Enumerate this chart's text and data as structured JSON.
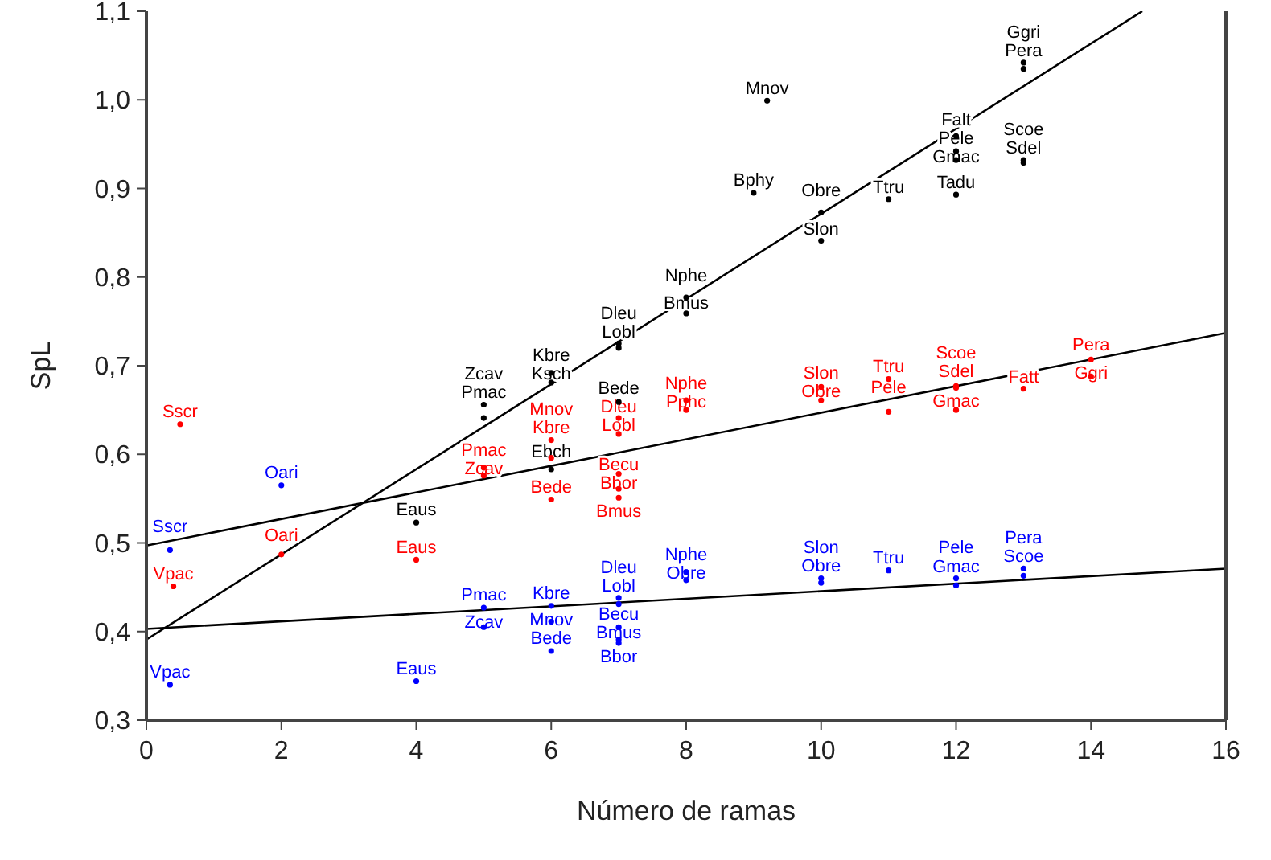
{
  "chart_data": {
    "type": "scatter",
    "xlabel": "Número de ramas",
    "ylabel": "SpL",
    "xlim": [
      0,
      16
    ],
    "xticks": [
      0,
      2,
      4,
      6,
      8,
      10,
      12,
      14,
      16
    ],
    "ylim": [
      0.3,
      1.1
    ],
    "yticks": [
      {
        "value": 0.3,
        "label": "0,3"
      },
      {
        "value": 0.4,
        "label": "0,4"
      },
      {
        "value": 0.5,
        "label": "0,5"
      },
      {
        "value": 0.6,
        "label": "0,6"
      },
      {
        "value": 0.7,
        "label": "0,7"
      },
      {
        "value": 0.8,
        "label": "0,8"
      },
      {
        "value": 0.9,
        "label": "0,9"
      },
      {
        "value": 1.0,
        "label": "1,0"
      },
      {
        "value": 1.1,
        "label": "1,1"
      }
    ],
    "grid": false,
    "series": [
      {
        "marker": "circle",
        "color": "#000000",
        "x": [
          9.2,
          9.0,
          10.0,
          10.0,
          11.0,
          12.0,
          13.0,
          13.0,
          12.0,
          12.0,
          12.0,
          13.0,
          13.0,
          8.0,
          8.0,
          7.0,
          7.0,
          6.0,
          6.0,
          7.0,
          5.0,
          5.0,
          6.0,
          4.0
        ],
        "values": [
          0.999,
          0.895,
          0.873,
          0.841,
          0.888,
          0.893,
          1.042,
          1.035,
          0.959,
          0.942,
          0.932,
          0.932,
          0.929,
          0.777,
          0.759,
          0.725,
          0.72,
          0.692,
          0.681,
          0.659,
          0.656,
          0.641,
          0.583,
          0.523
        ],
        "value_labels": [
          "Mnov",
          "Bphy",
          "Obre",
          "Slon",
          "Ttru",
          "Tadu",
          "Ggri",
          "Pera",
          "Falt",
          "Pele",
          "Gmac",
          "Scoe",
          "Sdel",
          "Nphe",
          "Bmus",
          "Dleu",
          "Lobl",
          "Kbre",
          "Ksch",
          "Bede",
          "Zcav",
          "Pmac",
          "Ebch",
          "Eaus"
        ]
      },
      {
        "marker": "circle",
        "color": "#ff0000",
        "x": [
          0.5,
          2.0,
          0.4,
          4.0,
          5.0,
          5.0,
          6.0,
          6.0,
          6.0,
          7.0,
          7.0,
          7.0,
          7.0,
          7.0,
          8.0,
          8.0,
          10.0,
          10.0,
          11.0,
          11.0,
          12.0,
          12.0,
          12.0,
          13.0,
          14.0,
          14.0
        ],
        "values": [
          0.634,
          0.487,
          0.451,
          0.481,
          0.585,
          0.576,
          0.616,
          0.596,
          0.549,
          0.641,
          0.623,
          0.578,
          0.561,
          0.551,
          0.661,
          0.65,
          0.676,
          0.661,
          0.685,
          0.648,
          0.677,
          0.675,
          0.65,
          0.674,
          0.707,
          0.688
        ],
        "value_labels": [
          "Sscr",
          "Oari",
          "Vpac",
          "Eaus",
          "Pmac",
          "Zcav",
          "Mnov",
          "Kbre",
          "Bede",
          "Dleu",
          "Lobl",
          "Becu",
          "Bbor",
          "Bmus",
          "Nphe",
          "Pphc",
          "Slon",
          "Obre",
          "Ttru",
          "Pele",
          "Scoe",
          "Sdel",
          "Gmac",
          "Fatt",
          "Pera",
          "Ggri"
        ]
      },
      {
        "marker": "circle",
        "color": "#0000ff",
        "x": [
          2.0,
          0.35,
          0.35,
          4.0,
          5.0,
          5.0,
          6.0,
          6.0,
          6.0,
          7.0,
          7.0,
          7.0,
          7.0,
          7.0,
          8.0,
          8.0,
          10.0,
          10.0,
          11.0,
          12.0,
          12.0,
          13.0,
          13.0
        ],
        "values": [
          0.565,
          0.492,
          0.34,
          0.344,
          0.427,
          0.405,
          0.429,
          0.411,
          0.378,
          0.438,
          0.431,
          0.405,
          0.391,
          0.387,
          0.467,
          0.458,
          0.46,
          0.455,
          0.469,
          0.46,
          0.452,
          0.471,
          0.463
        ],
        "value_labels": [
          "Oari",
          "Sscr",
          "Vpac",
          "Eaus",
          "Pmac",
          "Zcav",
          "Kbre",
          "Mnov",
          "Bede",
          "Dleu",
          "Lobl",
          "Becu",
          "Bbor",
          "Bmus",
          "Nphe",
          "Obre",
          "Slon",
          "Obre",
          "Ttru",
          "Pele",
          "Gmac",
          "Pera",
          "Scoe"
        ]
      },
      {
        "type": "line",
        "color": "#000000",
        "x": [
          0,
          14.76
        ],
        "values": [
          0.391,
          1.1
        ]
      },
      {
        "type": "line",
        "color": "#000000",
        "x": [
          0,
          16
        ],
        "values": [
          0.497,
          0.737
        ]
      },
      {
        "type": "line",
        "color": "#000000",
        "x": [
          0,
          16
        ],
        "values": [
          0.403,
          0.471
        ]
      }
    ]
  }
}
